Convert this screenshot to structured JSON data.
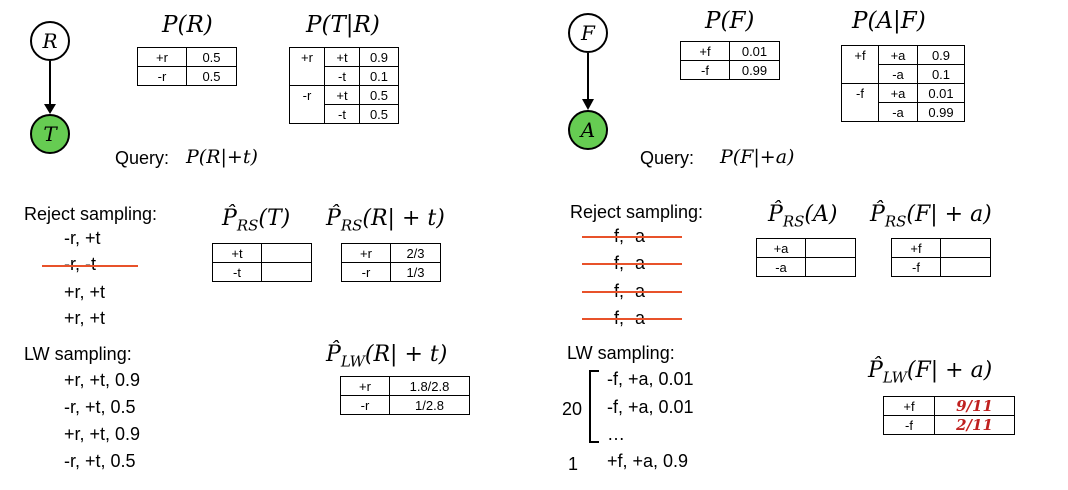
{
  "left": {
    "nodes": {
      "top": "R",
      "bottom": "T"
    },
    "p_r": {
      "title": "P(R)",
      "rows": [
        [
          "+r",
          "0.5"
        ],
        [
          "-r",
          "0.5"
        ]
      ]
    },
    "p_t_r": {
      "title": "P(T|R)",
      "rows": [
        [
          "+r",
          "+t",
          "0.9"
        ],
        [
          "",
          "-t",
          "0.1"
        ],
        [
          "-r",
          "+t",
          "0.5"
        ],
        [
          "",
          "-t",
          "0.5"
        ]
      ]
    },
    "query_label": "Query:",
    "query_expr": "P(R|+t)",
    "reject": {
      "label": "Reject sampling:",
      "samples": [
        "-r, +t",
        "-r, -t",
        "+r, +t",
        "+r, +t"
      ],
      "rs_t": {
        "title": "P̂",
        "sub": "RS",
        "arg": "(T)",
        "rows": [
          [
            "+t",
            ""
          ],
          [
            "-t",
            ""
          ]
        ]
      },
      "rs_rt": {
        "title": "P̂",
        "sub": "RS",
        "arg": "(R| + t)",
        "rows": [
          [
            "+r",
            "2/3"
          ],
          [
            "-r",
            "1/3"
          ]
        ]
      }
    },
    "lw": {
      "label": "LW sampling:",
      "samples": [
        "+r, +t, 0.9",
        "-r, +t, 0.5",
        "+r, +t, 0.9",
        "-r, +t, 0.5"
      ],
      "lw_rt": {
        "title": "P̂",
        "sub": "LW",
        "arg": "(R| + t)",
        "rows": [
          [
            "+r",
            "1.8/2.8"
          ],
          [
            "-r",
            "1/2.8"
          ]
        ]
      }
    }
  },
  "right": {
    "nodes": {
      "top": "F",
      "bottom": "A"
    },
    "p_f": {
      "title": "P(F)",
      "rows": [
        [
          "+f",
          "0.01"
        ],
        [
          "-f",
          "0.99"
        ]
      ]
    },
    "p_a_f": {
      "title": "P(A|F)",
      "rows": [
        [
          "+f",
          "+a",
          "0.9"
        ],
        [
          "",
          "-a",
          "0.1"
        ],
        [
          "-f",
          "+a",
          "0.01"
        ],
        [
          "",
          "-a",
          "0.99"
        ]
      ]
    },
    "query_label": "Query:",
    "query_expr": "P(F|+a)",
    "reject": {
      "label": "Reject sampling:",
      "samples": [
        "-f, -a",
        "-f, -a",
        "-f, -a",
        "-f, -a"
      ],
      "rs_a": {
        "title": "P̂",
        "sub": "RS",
        "arg": "(A)",
        "rows": [
          [
            "+a",
            ""
          ],
          [
            "-a",
            ""
          ]
        ]
      },
      "rs_fa": {
        "title": "P̂",
        "sub": "RS",
        "arg": "(F| + a)",
        "rows": [
          [
            "+f",
            ""
          ],
          [
            "-f",
            ""
          ]
        ]
      }
    },
    "lw": {
      "label": "LW sampling:",
      "count_20": "20",
      "count_1": "1",
      "samples": [
        "-f, +a, 0.01",
        "-f, +a, 0.01",
        "…",
        "+f, +a, 0.9"
      ],
      "lw_fa": {
        "title": "P̂",
        "sub": "LW",
        "arg": "(F| + a)",
        "rows": [
          [
            "+f",
            "9/11"
          ],
          [
            "-f",
            "2/11"
          ]
        ]
      }
    }
  },
  "colors": {
    "green_node": "#66cc52",
    "strike": "#e8522a",
    "handwriting": "#c0201f"
  }
}
